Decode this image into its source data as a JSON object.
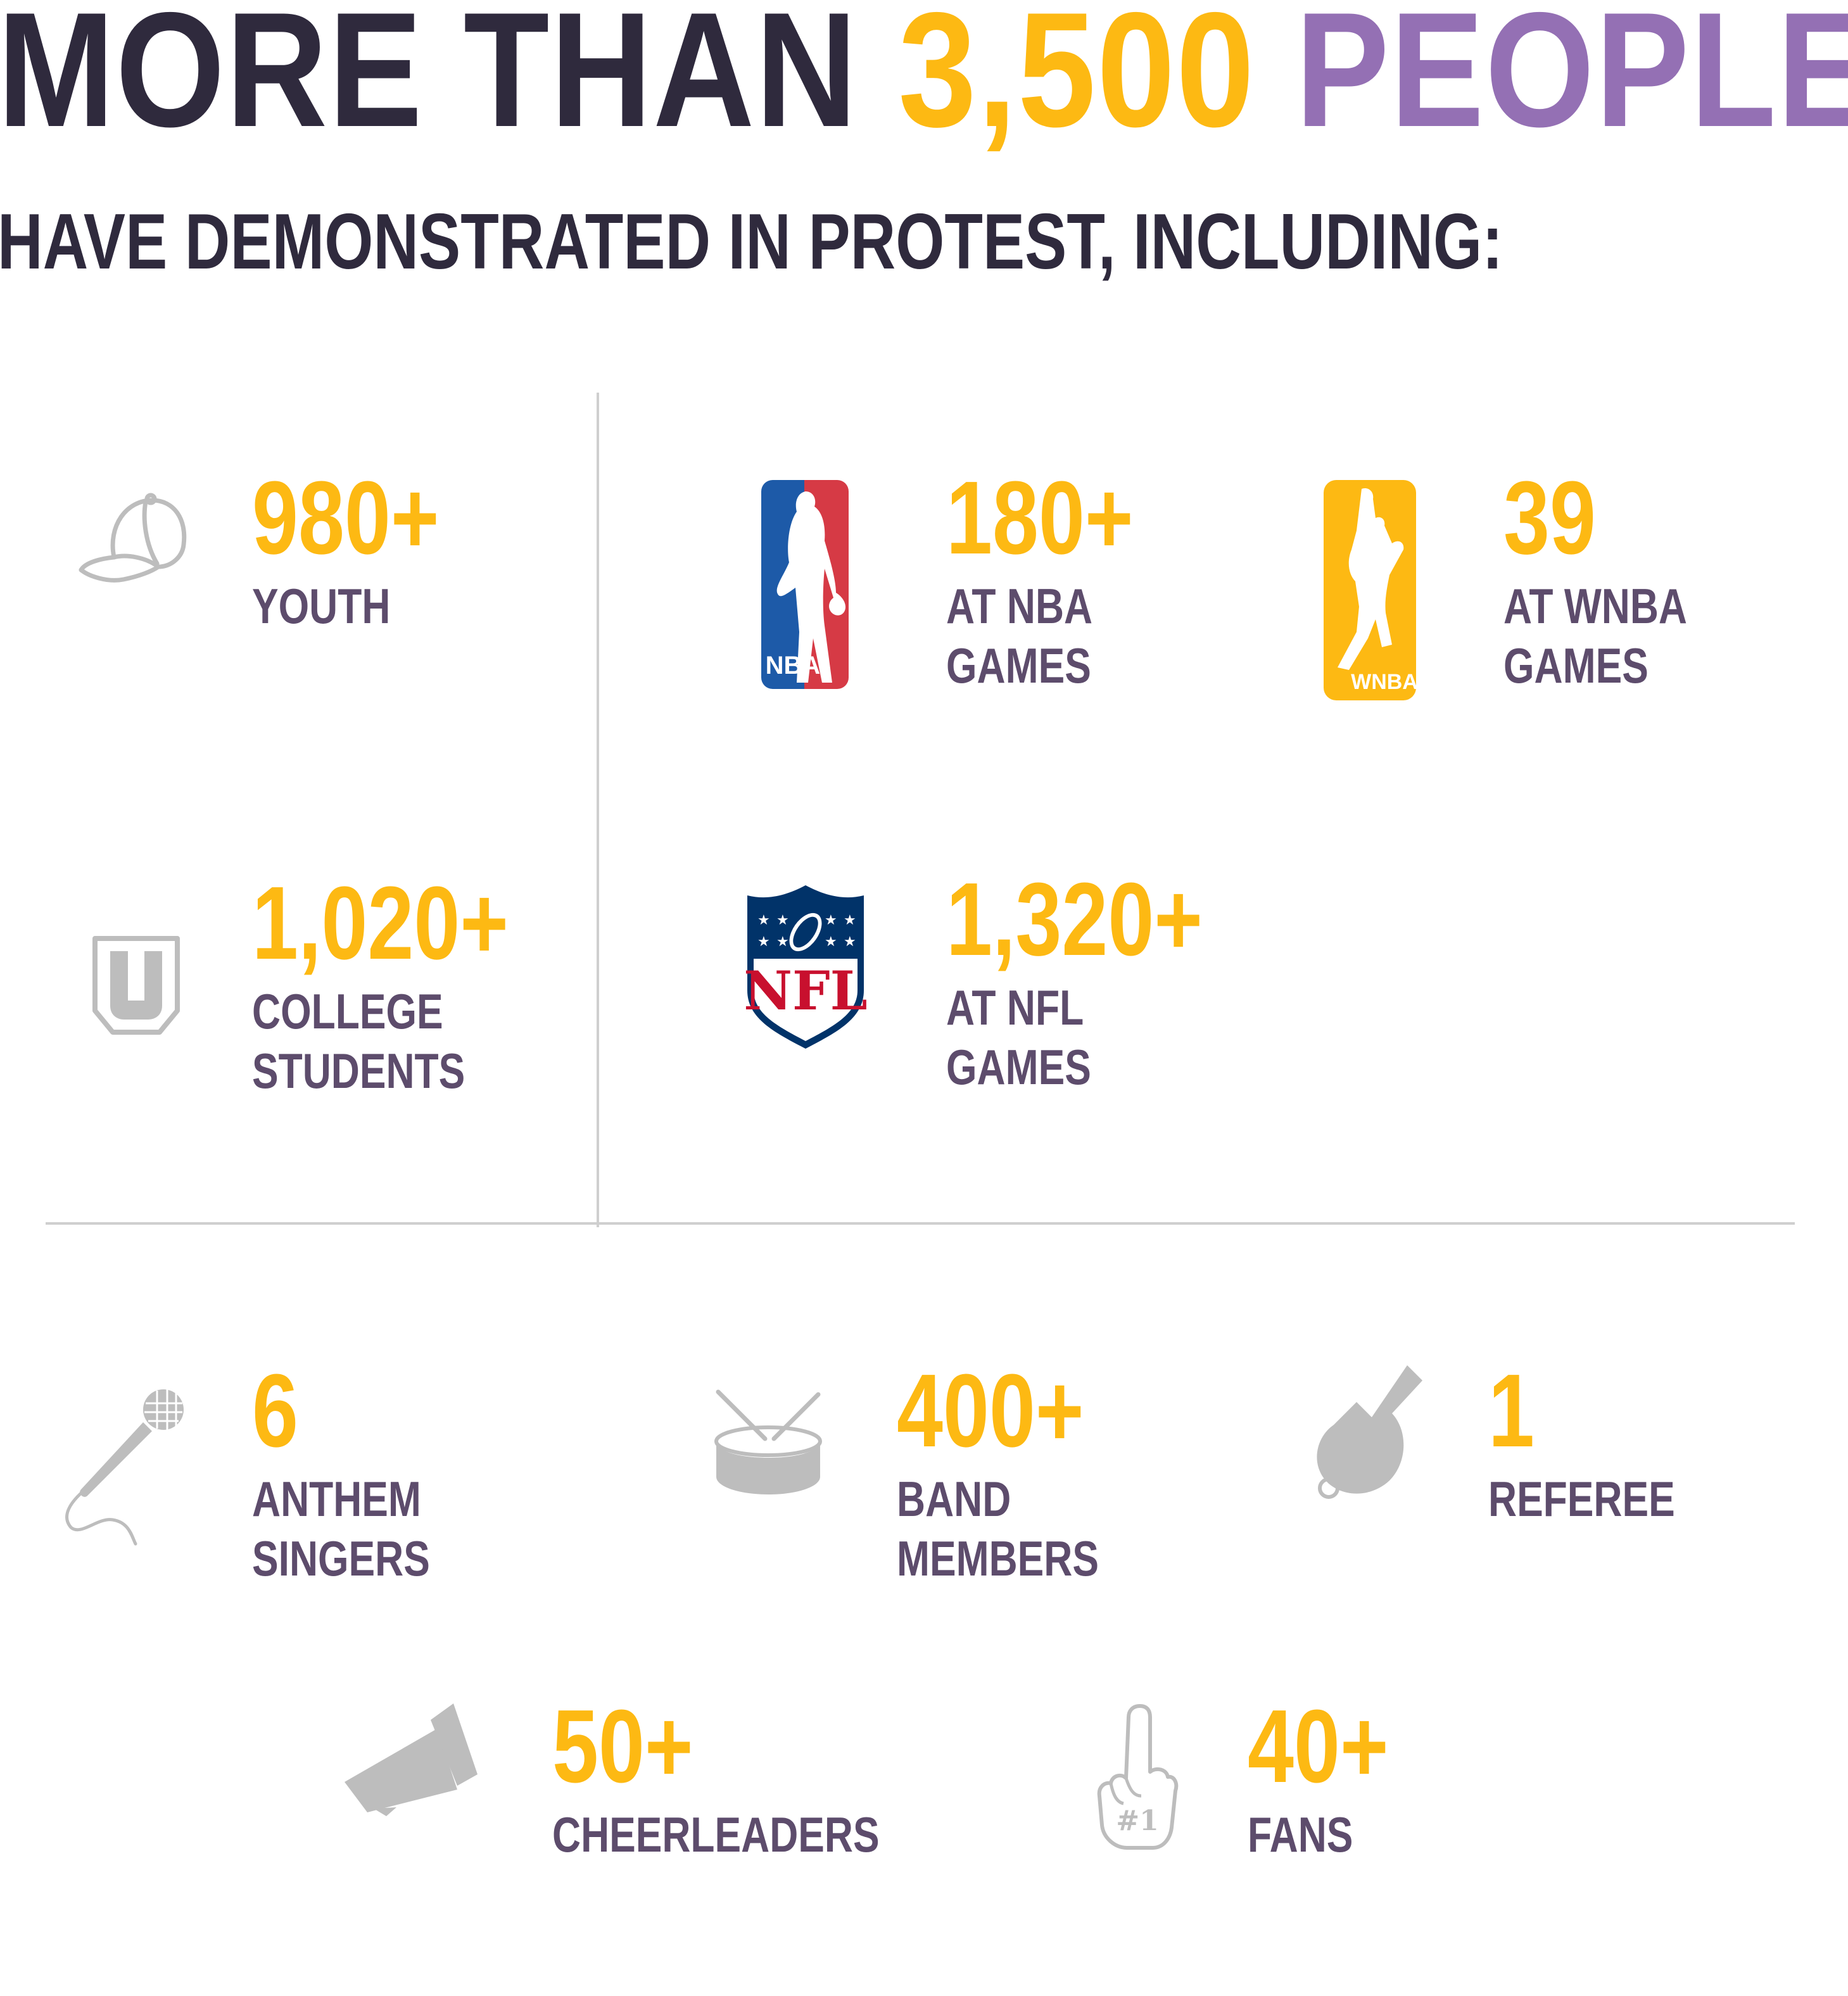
{
  "headline": {
    "part1": "MORE THAN ",
    "part2": "3,500 ",
    "part3": "PEOPLE",
    "colors": {
      "part1": "#2f2a3d",
      "part2": "#fdb913",
      "part3": "#9470b4"
    }
  },
  "subheadline": "HAVE DEMONSTRATED IN PROTEST, INCLUDING:",
  "stats": {
    "youth": {
      "value": "980+",
      "label": "YOUTH",
      "icon": "baseball-cap-icon"
    },
    "nba": {
      "value": "180+",
      "label": "AT NBA\nGAMES",
      "icon": "nba-logo-icon",
      "logo_text": "NBA"
    },
    "wnba": {
      "value": "39",
      "label": "AT WNBA\nGAMES",
      "icon": "wnba-logo-icon",
      "logo_text": "WNBA"
    },
    "college": {
      "value": "1,020+",
      "label": "COLLEGE\nSTUDENTS",
      "icon": "university-shield-icon"
    },
    "nfl": {
      "value": "1,320+",
      "label": "AT NFL\nGAMES",
      "icon": "nfl-logo-icon",
      "logo_text": "NFL"
    },
    "anthem": {
      "value": "6",
      "label": "ANTHEM\nSINGERS",
      "icon": "microphone-icon"
    },
    "band": {
      "value": "400+",
      "label": "BAND\nMEMBERS",
      "icon": "drum-icon"
    },
    "referee": {
      "value": "1",
      "label": "REFEREE",
      "icon": "whistle-icon"
    },
    "cheer": {
      "value": "50+",
      "label": "CHEERLEADERS",
      "icon": "megaphone-icon"
    },
    "fans": {
      "value": "40+",
      "label": "FANS",
      "icon": "foam-finger-icon",
      "finger_text": "#1"
    }
  },
  "colors": {
    "number": "#fdb913",
    "label": "#5d4c6c",
    "icon_gray": "#bdbdbd",
    "nba_blue": "#1d5aa8",
    "nba_red": "#d63a45",
    "nfl_navy": "#013369",
    "nfl_red": "#c8102e"
  }
}
